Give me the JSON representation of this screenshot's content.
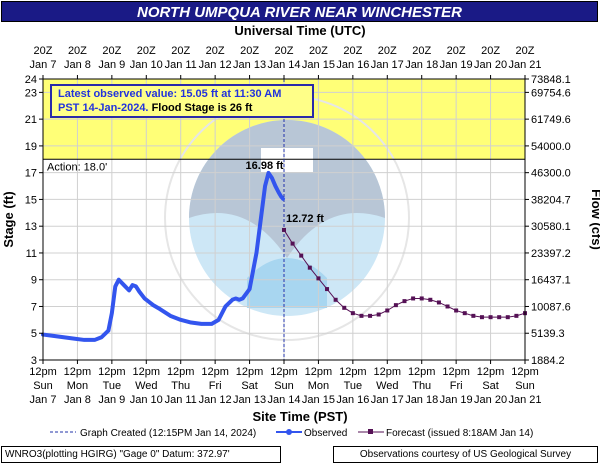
{
  "title": "NORTH UMPQUA RIVER NEAR WINCHESTER",
  "top_axis_title": "Universal Time (UTC)",
  "bottom_axis_title": "Site Time (PST)",
  "left_axis_title": "Stage (ft)",
  "right_axis_title": "Flow (cfs)",
  "status": {
    "line1": "Latest observed value: 15.05 ft at 11:30 AM",
    "line2_blue": "PST 14-Jan-2024.",
    "line2_black": "Flood Stage is 26 ft"
  },
  "legend": {
    "created": "Graph Created (12:15PM Jan 14, 2024)",
    "observed": "Observed",
    "forecast": "Forecast (issued 8:18AM Jan 14)"
  },
  "footer_left": "WNRO3(plotting HGIRG) \"Gage 0\" Datum: 372.97'",
  "footer_right": "Observations courtesy of US Geological Survey",
  "chart_data": {
    "type": "line",
    "title": "NORTH UMPQUA RIVER NEAR WINCHESTER",
    "xlabel": "Site Time (PST)",
    "ylabel": "Stage (ft)",
    "y2label": "Flow (cfs)",
    "ylim": [
      3,
      24
    ],
    "xlim": [
      "Jan 7 12pm",
      "Jan 21 12pm"
    ],
    "y_ticks": [
      3,
      5,
      7,
      9,
      11,
      13,
      15,
      17,
      19,
      21,
      23,
      24
    ],
    "flow_tick_labels": [
      "1884.2",
      "5139.3",
      "10087.6",
      "16437.1",
      "23397.2",
      "30580.1",
      "38204.7",
      "46300.0",
      "54000.0",
      "61749.6",
      "69754.6",
      "73848.1"
    ],
    "top_ticks": [
      {
        "t": "20Z",
        "b": "Jan 7"
      },
      {
        "t": "20Z",
        "b": "Jan 8"
      },
      {
        "t": "20Z",
        "b": "Jan 9"
      },
      {
        "t": "20Z",
        "b": "Jan 10"
      },
      {
        "t": "20Z",
        "b": "Jan 11"
      },
      {
        "t": "20Z",
        "b": "Jan 12"
      },
      {
        "t": "20Z",
        "b": "Jan 13"
      },
      {
        "t": "20Z",
        "b": "Jan 14"
      },
      {
        "t": "20Z",
        "b": "Jan 15"
      },
      {
        "t": "20Z",
        "b": "Jan 16"
      },
      {
        "t": "20Z",
        "b": "Jan 17"
      },
      {
        "t": "20Z",
        "b": "Jan 18"
      },
      {
        "t": "20Z",
        "b": "Jan 19"
      },
      {
        "t": "20Z",
        "b": "Jan 20"
      },
      {
        "t": "20Z",
        "b": "Jan 21"
      }
    ],
    "bottom_ticks": [
      {
        "t": "12pm",
        "d": "Sun",
        "dt": "Jan 7"
      },
      {
        "t": "12pm",
        "d": "Mon",
        "dt": "Jan 8"
      },
      {
        "t": "12pm",
        "d": "Tue",
        "dt": "Jan 9"
      },
      {
        "t": "12pm",
        "d": "Wed",
        "dt": "Jan 10"
      },
      {
        "t": "12pm",
        "d": "Thu",
        "dt": "Jan 11"
      },
      {
        "t": "12pm",
        "d": "Fri",
        "dt": "Jan 12"
      },
      {
        "t": "12pm",
        "d": "Sat",
        "dt": "Jan 13"
      },
      {
        "t": "12pm",
        "d": "Sun",
        "dt": "Jan 14"
      },
      {
        "t": "12pm",
        "d": "Mon",
        "dt": "Jan 15"
      },
      {
        "t": "12pm",
        "d": "Tue",
        "dt": "Jan 16"
      },
      {
        "t": "12pm",
        "d": "Wed",
        "dt": "Jan 17"
      },
      {
        "t": "12pm",
        "d": "Thu",
        "dt": "Jan 18"
      },
      {
        "t": "12pm",
        "d": "Fri",
        "dt": "Jan 19"
      },
      {
        "t": "12pm",
        "d": "Sat",
        "dt": "Jan 20"
      },
      {
        "t": "12pm",
        "d": "Sun",
        "dt": "Jan 21"
      }
    ],
    "action_stage": 18.0,
    "action_label": "Action: 18.0'",
    "flood_stage": 26,
    "graph_created_day": 7.0,
    "peak_label": "16.98 ft",
    "forecast_start_label": "12.72 ft",
    "series": [
      {
        "name": "Observed",
        "color": "#3355ee",
        "x": [
          0,
          0.3,
          0.6,
          0.9,
          1.2,
          1.5,
          1.7,
          1.9,
          2.0,
          2.1,
          2.2,
          2.35,
          2.5,
          2.6,
          2.7,
          2.8,
          2.95,
          3.1,
          3.2,
          3.4,
          3.7,
          4.0,
          4.3,
          4.6,
          4.9,
          5.1,
          5.3,
          5.5,
          5.6,
          5.7,
          5.8,
          6.0,
          6.2,
          6.35,
          6.45,
          6.55,
          6.65,
          6.75,
          6.85,
          6.92,
          6.97
        ],
        "y": [
          4.9,
          4.8,
          4.7,
          4.6,
          4.5,
          4.5,
          4.7,
          5.2,
          6.5,
          8.5,
          9.0,
          8.6,
          8.2,
          8.6,
          8.5,
          8.1,
          7.6,
          7.3,
          7.1,
          6.8,
          6.3,
          6.0,
          5.8,
          5.7,
          5.7,
          6.0,
          7.0,
          7.5,
          7.6,
          7.5,
          7.6,
          8.3,
          11.0,
          14.0,
          16.0,
          16.98,
          16.6,
          16.0,
          15.5,
          15.2,
          15.05
        ]
      },
      {
        "name": "Forecast",
        "color": "#551155",
        "x": [
          7.0,
          7.25,
          7.5,
          7.75,
          8.0,
          8.25,
          8.5,
          8.75,
          9.0,
          9.25,
          9.5,
          9.75,
          10.0,
          10.25,
          10.5,
          10.75,
          11.0,
          11.25,
          11.5,
          11.75,
          12.0,
          12.25,
          12.5,
          12.75,
          13.0,
          13.25,
          13.5,
          13.75,
          14.0
        ],
        "y": [
          12.72,
          11.7,
          10.8,
          9.9,
          9.1,
          8.3,
          7.5,
          6.9,
          6.5,
          6.3,
          6.3,
          6.4,
          6.7,
          7.1,
          7.4,
          7.6,
          7.6,
          7.5,
          7.3,
          7.0,
          6.7,
          6.5,
          6.3,
          6.2,
          6.2,
          6.2,
          6.2,
          6.3,
          6.5
        ]
      }
    ]
  }
}
